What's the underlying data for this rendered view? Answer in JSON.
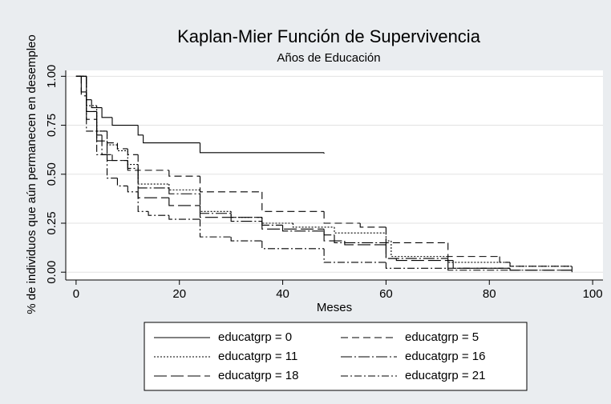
{
  "chart_data": {
    "type": "step",
    "title": "Kaplan-Mier Función de Supervivencia",
    "subtitle": "Años de Educación",
    "x_label": "Meses",
    "y_label": "% de individuos que aún permanecen en desempleo",
    "xlim": [
      -2,
      102
    ],
    "ylim": [
      -0.04,
      1.03
    ],
    "xticks": [
      0,
      20,
      40,
      60,
      80,
      100
    ],
    "yticks": [
      {
        "value": 0,
        "label": "0.00"
      },
      {
        "value": 0.25,
        "label": "0.25"
      },
      {
        "value": 0.5,
        "label": "0.50"
      },
      {
        "value": 0.75,
        "label": "0.75"
      },
      {
        "value": 1,
        "label": "1.00"
      }
    ],
    "grid": true,
    "series": [
      {
        "name": "educatgrp = 0",
        "color": "#000000",
        "dash": "none",
        "x": [
          0,
          1,
          2,
          3,
          5,
          7,
          12,
          13,
          24,
          48
        ],
        "values": [
          1,
          0.92,
          0.88,
          0.84,
          0.79,
          0.75,
          0.7,
          0.66,
          0.61,
          0.605
        ]
      },
      {
        "name": "educatgrp = 5",
        "color": "#000000",
        "dash": "9 5",
        "x": [
          0,
          1,
          2,
          4,
          6,
          8,
          10,
          12,
          18,
          24,
          36,
          48,
          55,
          60,
          72,
          82,
          84,
          96
        ],
        "values": [
          1,
          0.9,
          0.82,
          0.72,
          0.66,
          0.63,
          0.6,
          0.52,
          0.49,
          0.41,
          0.31,
          0.25,
          0.23,
          0.15,
          0.08,
          0.05,
          0.03,
          0.01
        ]
      },
      {
        "name": "educatgrp = 11",
        "color": "#000000",
        "dash": "2 2",
        "x": [
          0,
          2,
          4,
          6,
          8,
          10,
          12,
          18,
          24,
          30,
          36,
          42,
          50,
          60,
          61,
          72,
          84,
          96
        ],
        "values": [
          1,
          0.85,
          0.72,
          0.65,
          0.62,
          0.55,
          0.45,
          0.42,
          0.31,
          0.28,
          0.25,
          0.23,
          0.2,
          0.16,
          0.08,
          0.05,
          0.03,
          0.03
        ]
      },
      {
        "name": "educatgrp = 16",
        "color": "#000000",
        "dash": "14 3 2 3",
        "x": [
          0,
          2,
          4,
          5,
          7,
          10,
          12,
          18,
          24,
          30,
          36,
          40,
          48,
          50,
          60,
          72,
          73,
          84,
          96
        ],
        "values": [
          1,
          0.82,
          0.7,
          0.6,
          0.57,
          0.53,
          0.43,
          0.4,
          0.3,
          0.26,
          0.24,
          0.21,
          0.19,
          0.15,
          0.07,
          0.06,
          0.02,
          0.01,
          0
        ]
      },
      {
        "name": "educatgrp = 18",
        "color": "#000000",
        "dash": "16 5",
        "x": [
          0,
          2,
          4,
          6,
          10,
          12,
          18,
          24,
          36,
          48,
          52,
          60,
          62,
          72,
          84,
          96
        ],
        "values": [
          1,
          0.78,
          0.67,
          0.57,
          0.52,
          0.38,
          0.34,
          0.28,
          0.22,
          0.16,
          0.14,
          0.07,
          0.06,
          0.02,
          0.01,
          0.01
        ]
      },
      {
        "name": "educatgrp = 21",
        "color": "#000000",
        "dash": "9 3 2 3",
        "x": [
          0,
          2,
          4,
          6,
          8,
          10,
          12,
          14,
          18,
          24,
          30,
          36,
          48,
          60,
          72,
          84
        ],
        "values": [
          1,
          0.72,
          0.6,
          0.48,
          0.44,
          0.41,
          0.31,
          0.29,
          0.27,
          0.18,
          0.16,
          0.12,
          0.05,
          0.02,
          0.01,
          0.01
        ]
      }
    ]
  }
}
